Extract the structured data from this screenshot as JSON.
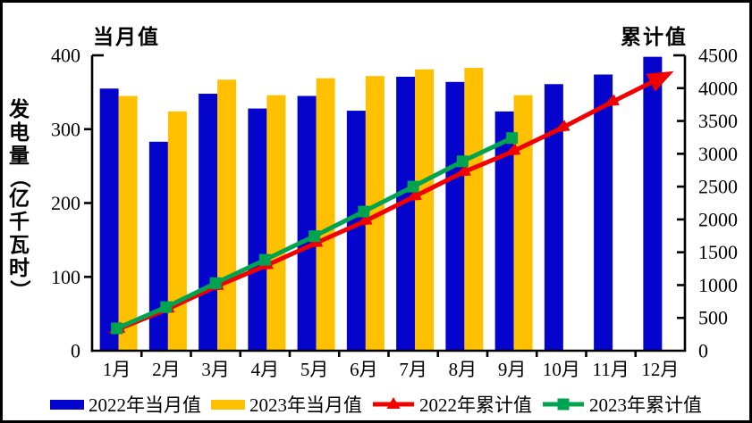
{
  "chart_data": {
    "type": "bar+line combo",
    "categories": [
      "1月",
      "2月",
      "3月",
      "4月",
      "5月",
      "6月",
      "7月",
      "8月",
      "9月",
      "10月",
      "11月",
      "12月"
    ],
    "left_axis": {
      "title": "当月值",
      "label": "发电量（亿千瓦时）",
      "min": 0,
      "max": 400,
      "step": 100,
      "tick_labels": [
        "0",
        "100",
        "200",
        "300",
        "400"
      ]
    },
    "right_axis": {
      "title": "累计值",
      "min": 0,
      "max": 4500,
      "step": 500,
      "tick_labels": [
        "0",
        "500",
        "1000",
        "1500",
        "2000",
        "2500",
        "3000",
        "3500",
        "4000",
        "4500"
      ]
    },
    "grid": "off",
    "legend_position": "bottom",
    "series": [
      {
        "name": "2022年当月值",
        "type": "bar",
        "axis": "left",
        "color": "#0404CC",
        "values": [
          355,
          283,
          348,
          328,
          345,
          325,
          371,
          364,
          324,
          361,
          374,
          398
        ]
      },
      {
        "name": "2023年当月值",
        "type": "bar",
        "axis": "left",
        "color": "#FFC000",
        "values": [
          345,
          324,
          367,
          346,
          369,
          372,
          381,
          383,
          346,
          null,
          null,
          null
        ]
      },
      {
        "name": "2022年累计值",
        "type": "line",
        "axis": "right",
        "color": "#F20000",
        "marker": "arrow-triangle",
        "values": [
          320,
          625,
          975,
          1290,
          1630,
          1965,
          2340,
          2715,
          3030,
          3390,
          3780,
          4155
        ]
      },
      {
        "name": "2023年累计值",
        "type": "line",
        "axis": "right",
        "color": "#00A34F",
        "marker": "square",
        "values": [
          340,
          665,
          1030,
          1385,
          1745,
          2120,
          2500,
          2885,
          3240,
          null,
          null,
          null
        ]
      }
    ]
  }
}
